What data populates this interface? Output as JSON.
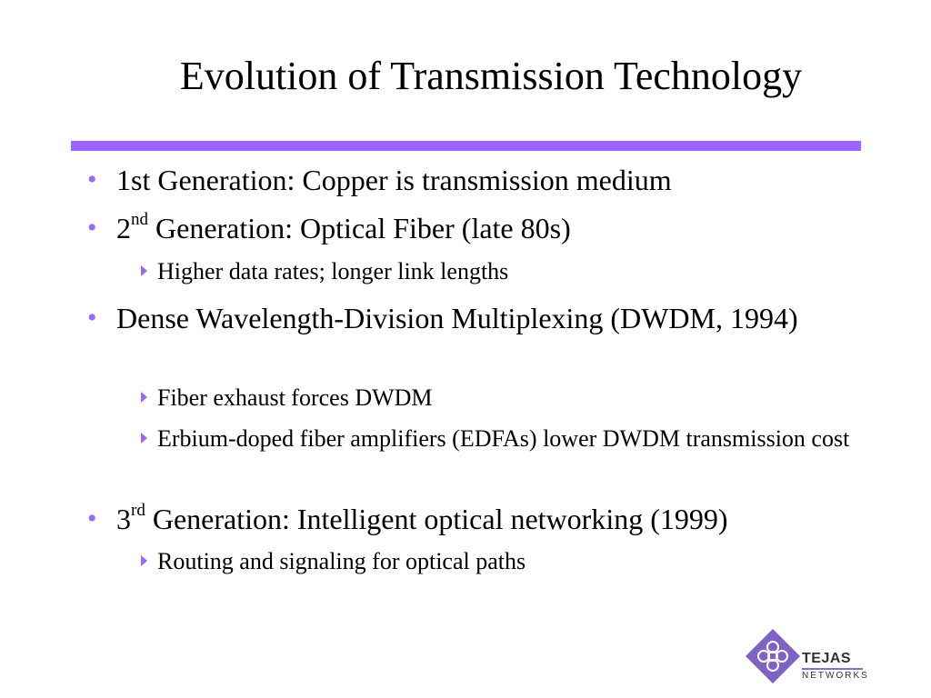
{
  "slide": {
    "title": "Evolution of Transmission Technology",
    "accent_color": "#9966ff",
    "bullets": [
      {
        "base": "1st Generation: Copper is transmission medium",
        "sup": "",
        "rest": ""
      },
      {
        "base": "2",
        "sup": "nd",
        "rest": " Generation: Optical Fiber (late 80s)",
        "sub": [
          "Higher data rates; longer link lengths"
        ]
      },
      {
        "base": "Dense Wavelength-Division Multiplexing (DWDM, 1994)",
        "sup": "",
        "rest": "",
        "sub": [
          "Fiber exhaust forces DWDM",
          "Erbium-doped fiber amplifiers (EDFAs) lower DWDM transmission cost"
        ]
      },
      {
        "base": "3",
        "sup": "rd",
        "rest": " Generation: Intelligent optical networking (1999)",
        "sub": [
          "Routing and signaling for optical paths"
        ]
      }
    ]
  },
  "logo": {
    "name": "TEJAS",
    "tagline": "NETWORKS",
    "icon": "knot-diamond-icon"
  }
}
